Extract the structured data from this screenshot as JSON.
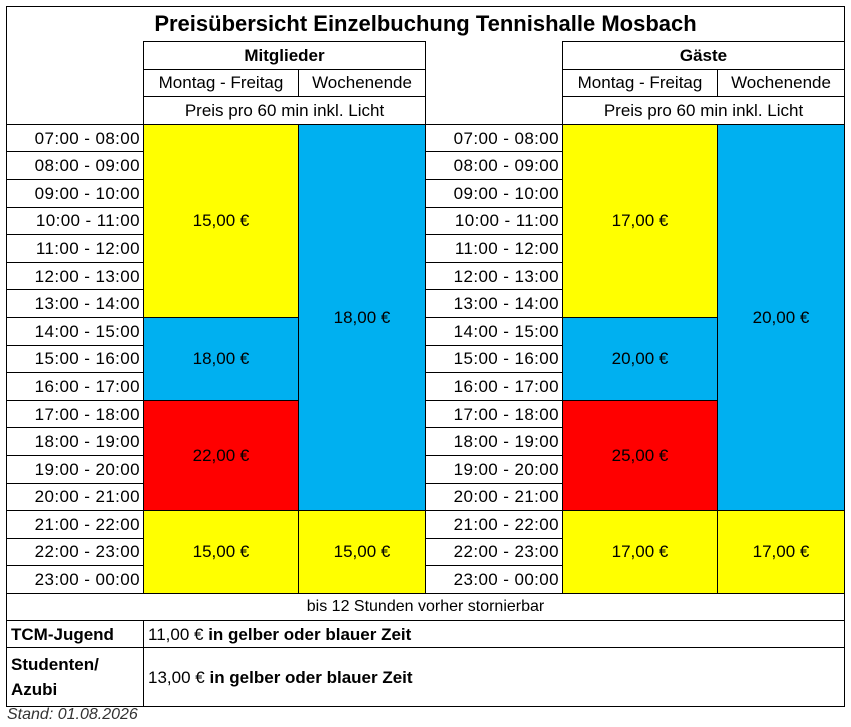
{
  "title": "Preisübersicht Einzelbuchung Tennishalle Mosbach",
  "members": {
    "header": "Mitglieder",
    "weekday_label": "Montag - Freitag",
    "weekend_label": "Wochenende",
    "price_note": "Preis pro 60 min inkl. Licht"
  },
  "guests": {
    "header": "Gäste",
    "weekday_label": "Montag - Freitag",
    "weekend_label": "Wochenende",
    "price_note": "Preis pro 60 min inkl. Licht"
  },
  "time_slots": [
    "07:00  -  08:00",
    "08:00  -  09:00",
    "09:00  -  10:00",
    "10:00  -  11:00",
    "11:00  -  12:00",
    "12:00  -  13:00",
    "13:00  -  14:00",
    "14:00  -  15:00",
    "15:00  -  16:00",
    "16:00  -  17:00",
    "17:00  -  18:00",
    "18:00  -  19:00",
    "19:00  -  20:00",
    "20:00  -  21:00",
    "21:00  -  22:00",
    "22:00  -  23:00",
    "23:00  -  00:00"
  ],
  "prices": {
    "members_weekday_morning": "15,00 €",
    "members_weekday_afternoon": "18,00 €",
    "members_weekday_evening": "22,00 €",
    "members_weekday_late": "15,00 €",
    "members_weekend_day": "18,00 €",
    "members_weekend_late": "15,00 €",
    "guests_weekday_morning": "17,00 €",
    "guests_weekday_afternoon": "20,00 €",
    "guests_weekday_evening": "25,00 €",
    "guests_weekday_late": "17,00 €",
    "guests_weekend_day": "20,00 €",
    "guests_weekend_late": "17,00 €"
  },
  "colors": {
    "yellow": "#ffff00",
    "blue": "#00b0f0",
    "red": "#ff0000"
  },
  "cancellation_note": "bis 12 Stunden vorher stornierbar",
  "discounts": [
    {
      "label": "TCM-Jugend",
      "price": "11,00 €",
      "condition": "in gelber oder blauer Zeit"
    },
    {
      "label": "Studenten/ Azubi",
      "price": "13,00 €",
      "condition": "in gelber oder blauer Zeit"
    }
  ],
  "footer": "Stand: 01.08.2026"
}
